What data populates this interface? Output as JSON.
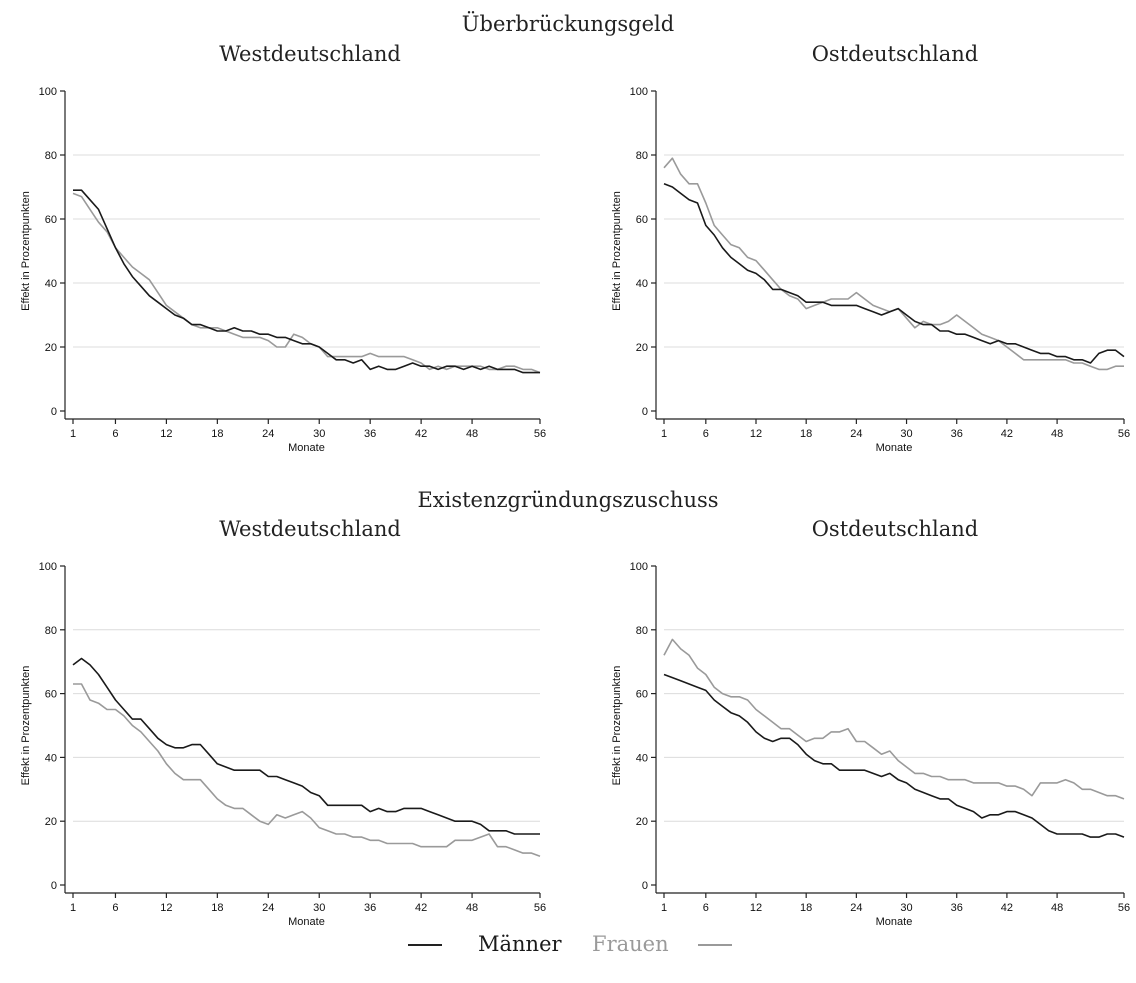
{
  "sections": [
    {
      "title": "Überbrückungsgeld"
    },
    {
      "title": "Existenzgründungszuschuss"
    }
  ],
  "legend": {
    "men": "Männer",
    "women": "Frauen",
    "men_color": "#1a1a1a",
    "women_color": "#9a9a9a"
  },
  "chart_data": [
    {
      "type": "line",
      "section": "Überbrückungsgeld",
      "title": "Westdeutschland",
      "xlabel": "Monate",
      "ylabel": "Effekt in Prozentpunkten",
      "xlim": [
        1,
        56
      ],
      "ylim": [
        0,
        100
      ],
      "xticks": [
        1,
        6,
        12,
        18,
        24,
        30,
        36,
        42,
        48,
        56
      ],
      "yticks": [
        0,
        20,
        40,
        60,
        80,
        100
      ],
      "grid": true,
      "series": [
        {
          "name": "Männer",
          "color": "#1a1a1a",
          "x": [
            1,
            2,
            3,
            4,
            5,
            6,
            7,
            8,
            9,
            10,
            11,
            12,
            13,
            14,
            15,
            16,
            17,
            18,
            19,
            20,
            21,
            22,
            23,
            24,
            25,
            26,
            27,
            28,
            29,
            30,
            31,
            32,
            33,
            34,
            35,
            36,
            37,
            38,
            39,
            40,
            41,
            42,
            43,
            44,
            45,
            46,
            47,
            48,
            49,
            50,
            51,
            52,
            53,
            54,
            55,
            56
          ],
          "y": [
            69,
            69,
            66,
            63,
            57,
            51,
            46,
            42,
            39,
            36,
            34,
            32,
            30,
            29,
            27,
            27,
            26,
            25,
            25,
            26,
            25,
            25,
            24,
            24,
            23,
            23,
            22,
            21,
            21,
            20,
            18,
            16,
            16,
            15,
            16,
            13,
            14,
            13,
            13,
            14,
            15,
            14,
            14,
            13,
            14,
            14,
            13,
            14,
            13,
            14,
            13,
            13,
            13,
            12,
            12,
            12
          ]
        },
        {
          "name": "Frauen",
          "color": "#9a9a9a",
          "x": [
            1,
            2,
            3,
            4,
            5,
            6,
            7,
            8,
            9,
            10,
            11,
            12,
            13,
            14,
            15,
            16,
            17,
            18,
            19,
            20,
            21,
            22,
            23,
            24,
            25,
            26,
            27,
            28,
            29,
            30,
            31,
            32,
            33,
            34,
            35,
            36,
            37,
            38,
            39,
            40,
            41,
            42,
            43,
            44,
            45,
            46,
            47,
            48,
            49,
            50,
            51,
            52,
            53,
            54,
            55,
            56
          ],
          "y": [
            68,
            67,
            63,
            59,
            56,
            51,
            48,
            45,
            43,
            41,
            37,
            33,
            31,
            29,
            27,
            26,
            26,
            26,
            25,
            24,
            23,
            23,
            23,
            22,
            20,
            20,
            24,
            23,
            21,
            20,
            17,
            17,
            17,
            17,
            17,
            18,
            17,
            17,
            17,
            17,
            16,
            15,
            13,
            14,
            13,
            14,
            14,
            14,
            14,
            13,
            13,
            14,
            14,
            13,
            13,
            12
          ]
        }
      ]
    },
    {
      "type": "line",
      "section": "Überbrückungsgeld",
      "title": "Ostdeutschland",
      "xlabel": "Monate",
      "ylabel": "Effekt in Prozentpunkten",
      "xlim": [
        1,
        56
      ],
      "ylim": [
        0,
        100
      ],
      "xticks": [
        1,
        6,
        12,
        18,
        24,
        30,
        36,
        42,
        48,
        56
      ],
      "yticks": [
        0,
        20,
        40,
        60,
        80,
        100
      ],
      "grid": true,
      "series": [
        {
          "name": "Männer",
          "color": "#1a1a1a",
          "x": [
            1,
            2,
            3,
            4,
            5,
            6,
            7,
            8,
            9,
            10,
            11,
            12,
            13,
            14,
            15,
            16,
            17,
            18,
            19,
            20,
            21,
            22,
            23,
            24,
            25,
            26,
            27,
            28,
            29,
            30,
            31,
            32,
            33,
            34,
            35,
            36,
            37,
            38,
            39,
            40,
            41,
            42,
            43,
            44,
            45,
            46,
            47,
            48,
            49,
            50,
            51,
            52,
            53,
            54,
            55,
            56
          ],
          "y": [
            71,
            70,
            68,
            66,
            65,
            58,
            55,
            51,
            48,
            46,
            44,
            43,
            41,
            38,
            38,
            37,
            36,
            34,
            34,
            34,
            33,
            33,
            33,
            33,
            32,
            31,
            30,
            31,
            32,
            30,
            28,
            27,
            27,
            25,
            25,
            24,
            24,
            23,
            22,
            21,
            22,
            21,
            21,
            20,
            19,
            18,
            18,
            17,
            17,
            16,
            16,
            15,
            18,
            19,
            19,
            17
          ]
        },
        {
          "name": "Frauen",
          "color": "#9a9a9a",
          "x": [
            1,
            2,
            3,
            4,
            5,
            6,
            7,
            8,
            9,
            10,
            11,
            12,
            13,
            14,
            15,
            16,
            17,
            18,
            19,
            20,
            21,
            22,
            23,
            24,
            25,
            26,
            27,
            28,
            29,
            30,
            31,
            32,
            33,
            34,
            35,
            36,
            37,
            38,
            39,
            40,
            41,
            42,
            43,
            44,
            45,
            46,
            47,
            48,
            49,
            50,
            51,
            52,
            53,
            54,
            55,
            56
          ],
          "y": [
            76,
            79,
            74,
            71,
            71,
            65,
            58,
            55,
            52,
            51,
            48,
            47,
            44,
            41,
            38,
            36,
            35,
            32,
            33,
            34,
            35,
            35,
            35,
            37,
            35,
            33,
            32,
            31,
            32,
            29,
            26,
            28,
            27,
            27,
            28,
            30,
            28,
            26,
            24,
            23,
            22,
            20,
            18,
            16,
            16,
            16,
            16,
            16,
            16,
            15,
            15,
            14,
            13,
            13,
            14,
            14
          ]
        }
      ]
    },
    {
      "type": "line",
      "section": "Existenzgründungszuschuss",
      "title": "Westdeutschland",
      "xlabel": "Monate",
      "ylabel": "Effekt in Prozentpunkten",
      "xlim": [
        1,
        56
      ],
      "ylim": [
        0,
        100
      ],
      "xticks": [
        1,
        6,
        12,
        18,
        24,
        30,
        36,
        42,
        48,
        56
      ],
      "yticks": [
        0,
        20,
        40,
        60,
        80,
        100
      ],
      "grid": true,
      "series": [
        {
          "name": "Männer",
          "color": "#1a1a1a",
          "x": [
            1,
            2,
            3,
            4,
            5,
            6,
            7,
            8,
            9,
            10,
            11,
            12,
            13,
            14,
            15,
            16,
            17,
            18,
            19,
            20,
            21,
            22,
            23,
            24,
            25,
            26,
            27,
            28,
            29,
            30,
            31,
            32,
            33,
            34,
            35,
            36,
            37,
            38,
            39,
            40,
            41,
            42,
            43,
            44,
            45,
            46,
            47,
            48,
            49,
            50,
            51,
            52,
            53,
            54,
            55,
            56
          ],
          "y": [
            69,
            71,
            69,
            66,
            62,
            58,
            55,
            52,
            52,
            49,
            46,
            44,
            43,
            43,
            44,
            44,
            41,
            38,
            37,
            36,
            36,
            36,
            36,
            34,
            34,
            33,
            32,
            31,
            29,
            28,
            25,
            25,
            25,
            25,
            25,
            23,
            24,
            23,
            23,
            24,
            24,
            24,
            23,
            22,
            21,
            20,
            20,
            20,
            19,
            17,
            17,
            17,
            16,
            16,
            16,
            16
          ]
        },
        {
          "name": "Frauen",
          "color": "#9a9a9a",
          "x": [
            1,
            2,
            3,
            4,
            5,
            6,
            7,
            8,
            9,
            10,
            11,
            12,
            13,
            14,
            15,
            16,
            17,
            18,
            19,
            20,
            21,
            22,
            23,
            24,
            25,
            26,
            27,
            28,
            29,
            30,
            31,
            32,
            33,
            34,
            35,
            36,
            37,
            38,
            39,
            40,
            41,
            42,
            43,
            44,
            45,
            46,
            47,
            48,
            49,
            50,
            51,
            52,
            53,
            54,
            55,
            56
          ],
          "y": [
            63,
            63,
            58,
            57,
            55,
            55,
            53,
            50,
            48,
            45,
            42,
            38,
            35,
            33,
            33,
            33,
            30,
            27,
            25,
            24,
            24,
            22,
            20,
            19,
            22,
            21,
            22,
            23,
            21,
            18,
            17,
            16,
            16,
            15,
            15,
            14,
            14,
            13,
            13,
            13,
            13,
            12,
            12,
            12,
            12,
            14,
            14,
            14,
            15,
            16,
            12,
            12,
            11,
            10,
            10,
            9
          ]
        }
      ]
    },
    {
      "type": "line",
      "section": "Existenzgründungszuschuss",
      "title": "Ostdeutschland",
      "xlabel": "Monate",
      "ylabel": "Effekt in Prozentpunkten",
      "xlim": [
        1,
        56
      ],
      "ylim": [
        0,
        100
      ],
      "xticks": [
        1,
        6,
        12,
        18,
        24,
        30,
        36,
        42,
        48,
        56
      ],
      "yticks": [
        0,
        20,
        40,
        60,
        80,
        100
      ],
      "grid": true,
      "series": [
        {
          "name": "Männer",
          "color": "#1a1a1a",
          "x": [
            1,
            2,
            3,
            4,
            5,
            6,
            7,
            8,
            9,
            10,
            11,
            12,
            13,
            14,
            15,
            16,
            17,
            18,
            19,
            20,
            21,
            22,
            23,
            24,
            25,
            26,
            27,
            28,
            29,
            30,
            31,
            32,
            33,
            34,
            35,
            36,
            37,
            38,
            39,
            40,
            41,
            42,
            43,
            44,
            45,
            46,
            47,
            48,
            49,
            50,
            51,
            52,
            53,
            54,
            55,
            56
          ],
          "y": [
            66,
            65,
            64,
            63,
            62,
            61,
            58,
            56,
            54,
            53,
            51,
            48,
            46,
            45,
            46,
            46,
            44,
            41,
            39,
            38,
            38,
            36,
            36,
            36,
            36,
            35,
            34,
            35,
            33,
            32,
            30,
            29,
            28,
            27,
            27,
            25,
            24,
            23,
            21,
            22,
            22,
            23,
            23,
            22,
            21,
            19,
            17,
            16,
            16,
            16,
            16,
            15,
            15,
            16,
            16,
            15
          ]
        },
        {
          "name": "Frauen",
          "color": "#9a9a9a",
          "x": [
            1,
            2,
            3,
            4,
            5,
            6,
            7,
            8,
            9,
            10,
            11,
            12,
            13,
            14,
            15,
            16,
            17,
            18,
            19,
            20,
            21,
            22,
            23,
            24,
            25,
            26,
            27,
            28,
            29,
            30,
            31,
            32,
            33,
            34,
            35,
            36,
            37,
            38,
            39,
            40,
            41,
            42,
            43,
            44,
            45,
            46,
            47,
            48,
            49,
            50,
            51,
            52,
            53,
            54,
            55,
            56
          ],
          "y": [
            72,
            77,
            74,
            72,
            68,
            66,
            62,
            60,
            59,
            59,
            58,
            55,
            53,
            51,
            49,
            49,
            47,
            45,
            46,
            46,
            48,
            48,
            49,
            45,
            45,
            43,
            41,
            42,
            39,
            37,
            35,
            35,
            34,
            34,
            33,
            33,
            33,
            32,
            32,
            32,
            32,
            31,
            31,
            30,
            28,
            32,
            32,
            32,
            33,
            32,
            30,
            30,
            29,
            28,
            28,
            27
          ]
        }
      ]
    }
  ]
}
